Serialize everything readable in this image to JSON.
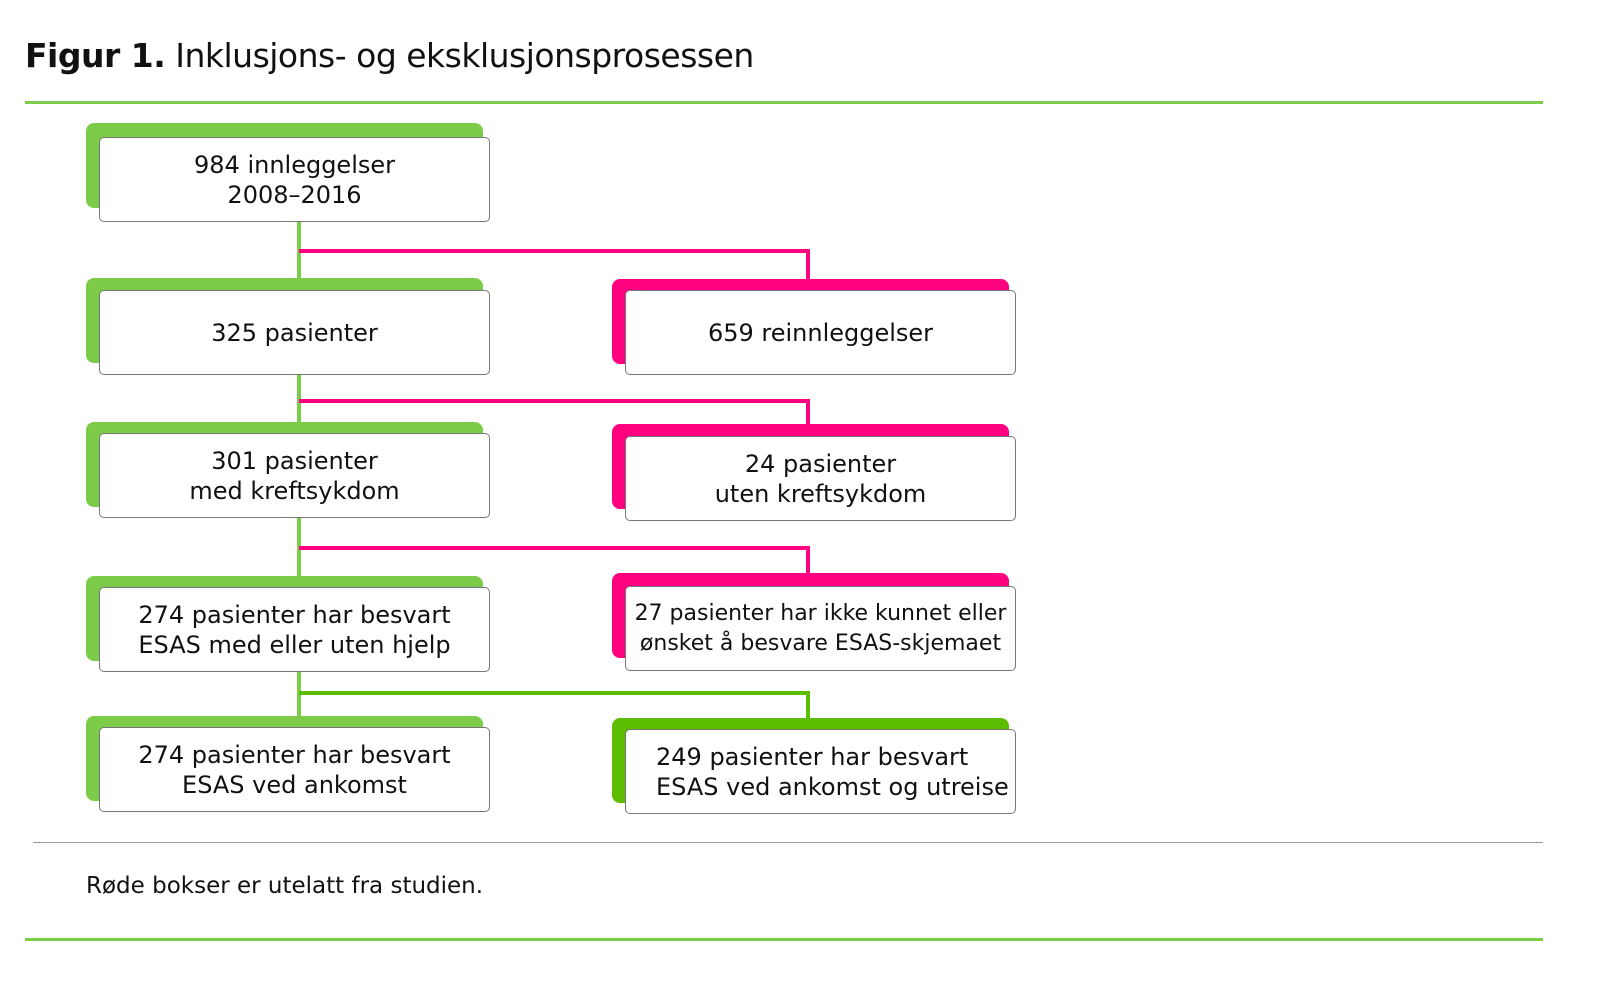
{
  "title": {
    "label": "Figur 1.",
    "text": "Inklusjons- og eksklusjonsprosessen"
  },
  "colors": {
    "included": "#7ccc4a",
    "excluded": "#ff0080",
    "final": "#5cbc00",
    "rule": "#7ccc4a"
  },
  "boxes": [
    {
      "id": "admissions",
      "text": "984 innleggelser\n2008–2016",
      "status": "included"
    },
    {
      "id": "patients",
      "text": "325 pasienter",
      "status": "included"
    },
    {
      "id": "readmissions",
      "text": "659 reinnleggelser",
      "status": "excluded"
    },
    {
      "id": "cancer",
      "text": "301 pasienter\nmed kreftsykdom",
      "status": "included"
    },
    {
      "id": "no-cancer",
      "text": "24 pasienter\nuten kreftsykdom",
      "status": "excluded"
    },
    {
      "id": "answered",
      "text": "274 pasienter har besvart\nESAS med eller uten hjelp",
      "status": "included"
    },
    {
      "id": "not-answered",
      "text": "27 pasienter har ikke kunnet eller\nønsket å besvare ESAS-skjemaet",
      "status": "excluded"
    },
    {
      "id": "arrival",
      "text": "274 pasienter har besvart\nESAS ved ankomst",
      "status": "included"
    },
    {
      "id": "arrival-departure",
      "text": "249 pasienter har besvart\nESAS ved ankomst og utreise",
      "status": "final"
    }
  ],
  "note": "Røde bokser er utelatt fra studien."
}
